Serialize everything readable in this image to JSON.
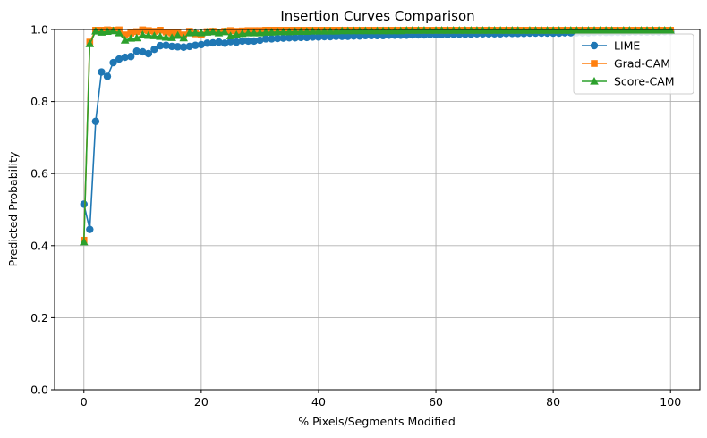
{
  "chart_data": {
    "type": "line",
    "title": "Insertion Curves Comparison",
    "xlabel": "% Pixels/Segments Modified",
    "ylabel": "Predicted Probability",
    "xlim": [
      -5,
      105
    ],
    "ylim": [
      0.0,
      1.0
    ],
    "xticks": [
      0,
      20,
      40,
      60,
      80,
      100
    ],
    "yticks": [
      0.0,
      0.2,
      0.4,
      0.6,
      0.8,
      1.0
    ],
    "xtick_labels": [
      "0",
      "20",
      "40",
      "60",
      "80",
      "100"
    ],
    "ytick_labels": [
      "0.0",
      "0.2",
      "0.4",
      "0.6",
      "0.8",
      "1.0"
    ],
    "grid": true,
    "legend_position": "top-right",
    "x": [
      0,
      1,
      2,
      3,
      4,
      5,
      6,
      7,
      8,
      9,
      10,
      11,
      12,
      13,
      14,
      15,
      16,
      17,
      18,
      19,
      20,
      21,
      22,
      23,
      24,
      25,
      26,
      27,
      28,
      29,
      30,
      31,
      32,
      33,
      34,
      35,
      36,
      37,
      38,
      39,
      40,
      41,
      42,
      43,
      44,
      45,
      46,
      47,
      48,
      49,
      50,
      51,
      52,
      53,
      54,
      55,
      56,
      57,
      58,
      59,
      60,
      61,
      62,
      63,
      64,
      65,
      66,
      67,
      68,
      69,
      70,
      71,
      72,
      73,
      74,
      75,
      76,
      77,
      78,
      79,
      80,
      81,
      82,
      83,
      84,
      85,
      86,
      87,
      88,
      89,
      90,
      91,
      92,
      93,
      94,
      95,
      96,
      97,
      98,
      99,
      100
    ],
    "series": [
      {
        "name": "LIME",
        "color": "#1f77b4",
        "marker": "circle",
        "values": [
          0.515,
          0.445,
          0.745,
          0.882,
          0.87,
          0.908,
          0.918,
          0.923,
          0.925,
          0.94,
          0.938,
          0.933,
          0.945,
          0.955,
          0.956,
          0.953,
          0.952,
          0.951,
          0.953,
          0.956,
          0.958,
          0.962,
          0.963,
          0.965,
          0.962,
          0.966,
          0.965,
          0.968,
          0.968,
          0.968,
          0.97,
          0.974,
          0.974,
          0.975,
          0.976,
          0.977,
          0.977,
          0.978,
          0.978,
          0.979,
          0.979,
          0.98,
          0.98,
          0.981,
          0.981,
          0.981,
          0.982,
          0.982,
          0.983,
          0.983,
          0.983,
          0.983,
          0.984,
          0.984,
          0.984,
          0.984,
          0.985,
          0.985,
          0.985,
          0.986,
          0.986,
          0.986,
          0.986,
          0.987,
          0.987,
          0.987,
          0.987,
          0.988,
          0.988,
          0.988,
          0.988,
          0.988,
          0.989,
          0.989,
          0.989,
          0.989,
          0.99,
          0.99,
          0.99,
          0.99,
          0.99,
          0.99,
          0.991,
          0.991,
          0.991,
          0.991,
          0.991,
          0.992,
          0.992,
          0.992,
          0.992,
          0.992,
          0.992,
          0.993,
          0.993,
          0.993,
          0.993,
          0.993,
          0.993,
          0.994,
          0.994
        ]
      },
      {
        "name": "Grad-CAM",
        "color": "#ff7f0e",
        "marker": "square",
        "values": [
          0.415,
          0.965,
          0.998,
          0.998,
          0.999,
          0.998,
          0.999,
          0.985,
          0.99,
          0.994,
          0.999,
          0.997,
          0.995,
          0.998,
          0.993,
          0.99,
          0.99,
          0.985,
          0.995,
          0.988,
          0.985,
          0.994,
          0.995,
          0.993,
          0.995,
          0.997,
          0.995,
          0.996,
          0.997,
          0.997,
          0.997,
          0.998,
          0.998,
          0.998,
          0.998,
          0.998,
          0.998,
          0.998,
          0.998,
          0.998,
          0.998,
          0.998,
          0.998,
          0.998,
          0.998,
          0.998,
          0.998,
          0.998,
          0.998,
          0.998,
          0.998,
          0.998,
          0.998,
          0.998,
          0.998,
          0.998,
          0.998,
          0.998,
          0.998,
          0.998,
          0.998,
          0.998,
          0.998,
          0.998,
          0.998,
          0.998,
          0.998,
          0.998,
          0.998,
          0.998,
          0.998,
          0.998,
          0.998,
          0.998,
          0.998,
          0.998,
          0.998,
          0.998,
          0.998,
          0.998,
          0.998,
          0.998,
          0.998,
          0.998,
          0.998,
          0.998,
          0.998,
          0.998,
          0.998,
          0.998,
          0.998,
          0.998,
          0.998,
          0.998,
          0.998,
          0.998,
          0.998,
          0.998,
          0.998,
          0.998,
          0.998
        ]
      },
      {
        "name": "Score-CAM",
        "color": "#2ca02c",
        "marker": "triangle",
        "values": [
          0.41,
          0.96,
          0.995,
          0.992,
          0.994,
          0.996,
          0.99,
          0.97,
          0.975,
          0.976,
          0.985,
          0.983,
          0.982,
          0.98,
          0.978,
          0.977,
          0.983,
          0.976,
          0.99,
          0.991,
          0.99,
          0.992,
          0.993,
          0.99,
          0.993,
          0.982,
          0.985,
          0.988,
          0.99,
          0.99,
          0.99,
          0.992,
          0.992,
          0.993,
          0.993,
          0.993,
          0.994,
          0.994,
          0.994,
          0.995,
          0.995,
          0.995,
          0.995,
          0.995,
          0.996,
          0.996,
          0.996,
          0.996,
          0.996,
          0.996,
          0.996,
          0.996,
          0.996,
          0.996,
          0.996,
          0.997,
          0.997,
          0.997,
          0.997,
          0.997,
          0.997,
          0.997,
          0.997,
          0.997,
          0.997,
          0.997,
          0.997,
          0.997,
          0.997,
          0.997,
          0.997,
          0.997,
          0.997,
          0.997,
          0.997,
          0.997,
          0.997,
          0.997,
          0.997,
          0.997,
          0.997,
          0.997,
          0.997,
          0.997,
          0.997,
          0.997,
          0.997,
          0.997,
          0.997,
          0.997,
          0.997,
          0.997,
          0.997,
          0.997,
          0.997,
          0.997,
          0.997,
          0.997,
          0.997,
          0.997,
          0.997
        ]
      }
    ]
  }
}
